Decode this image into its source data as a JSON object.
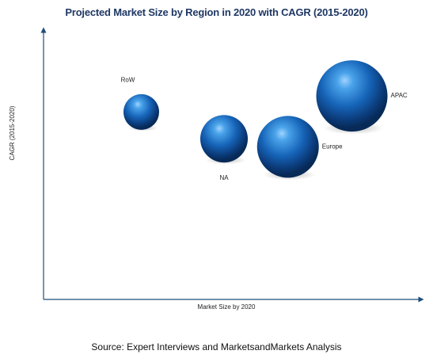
{
  "chart_data": {
    "type": "bubble",
    "title": "Projected Market Size by Region in 2020 with CAGR (2015-2020)",
    "xlabel": "Market Size by 2020",
    "ylabel": "CAGR (2015-2020)",
    "xlim": [
      0,
      10
    ],
    "ylim": [
      0,
      10
    ],
    "axis_tick_labels": false,
    "grid": false,
    "legend": "none",
    "bubble_color": "#1f5fa8",
    "axis_color": "#1f4e79",
    "series": [
      {
        "label": "RoW",
        "x": 2.6,
        "y": 7.0,
        "size": 1.5
      },
      {
        "label": "NA",
        "x": 4.8,
        "y": 6.0,
        "size": 2.0
      },
      {
        "label": "Europe",
        "x": 6.5,
        "y": 5.7,
        "size": 2.6
      },
      {
        "label": "APAC",
        "x": 8.2,
        "y": 7.6,
        "size": 3.0
      }
    ]
  },
  "source": "Source: Expert Interviews and MarketsandMarkets Analysis"
}
